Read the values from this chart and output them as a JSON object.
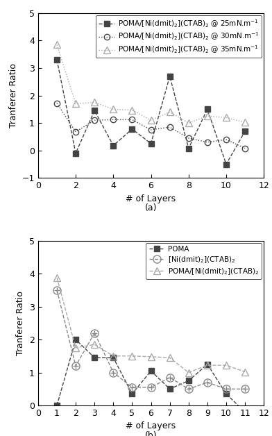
{
  "panel_a": {
    "series": [
      {
        "label": "POMA/[Ni(dmit)$_2$](CTAB)$_2$ @ 25mN.m$^{-1}$",
        "x": [
          1,
          2,
          3,
          4,
          5,
          6,
          7,
          8,
          9,
          10,
          11
        ],
        "y": [
          3.3,
          -0.1,
          1.45,
          0.18,
          0.78,
          0.25,
          2.7,
          0.08,
          1.5,
          -0.5,
          0.7
        ],
        "marker": "s",
        "linestyle": "--",
        "color": "#444444",
        "markersize": 6,
        "fillstyle": "full"
      },
      {
        "label": "POMA/[Ni(dmit)$_2$](CTAB)$_2$ @ 30mN.m$^{-1}$",
        "x": [
          1,
          2,
          3,
          4,
          5,
          6,
          7,
          8,
          9,
          10,
          11
        ],
        "y": [
          1.72,
          0.68,
          1.1,
          1.12,
          1.12,
          0.75,
          0.85,
          0.45,
          0.3,
          0.4,
          0.08
        ],
        "marker": "o",
        "linestyle": ":",
        "color": "#444444",
        "markersize": 6,
        "fillstyle": "none"
      },
      {
        "label": "POMA/[Ni(dmit)$_2$](CTAB)$_2$ @ 35mN.m$^{-1}$",
        "x": [
          1,
          2,
          3,
          4,
          5,
          6,
          7,
          8,
          9,
          10,
          11
        ],
        "y": [
          3.85,
          1.7,
          1.75,
          1.5,
          1.47,
          1.1,
          1.4,
          1.0,
          1.25,
          1.2,
          1.02
        ],
        "marker": "^",
        "linestyle": ":",
        "color": "#aaaaaa",
        "markersize": 7,
        "fillstyle": "none"
      }
    ],
    "xlabel": "# of Layers",
    "ylabel": "Tranferer Ratio",
    "xlim": [
      0,
      12
    ],
    "ylim": [
      -1,
      5
    ],
    "xticks": [
      0,
      2,
      4,
      6,
      8,
      10,
      12
    ],
    "yticks": [
      -1,
      0,
      1,
      2,
      3,
      4,
      5
    ],
    "panel_label": "(a)"
  },
  "panel_b": {
    "series": [
      {
        "label": "POMA",
        "x": [
          1,
          2,
          3,
          4,
          5,
          6,
          7,
          8,
          9,
          10,
          11
        ],
        "y": [
          0.0,
          2.0,
          1.45,
          1.45,
          0.35,
          1.05,
          0.5,
          0.75,
          1.25,
          0.35,
          -0.2
        ],
        "marker": "s",
        "linestyle": "--",
        "color": "#444444",
        "markersize": 6,
        "fillstyle": "full",
        "extra_marker": null
      },
      {
        "label": "[Ni(dmit)$_2$](CTAB)$_2$",
        "x": [
          1,
          2,
          3,
          4,
          5,
          6,
          7,
          8,
          9,
          10,
          11
        ],
        "y": [
          3.5,
          1.2,
          2.2,
          1.0,
          0.55,
          0.55,
          0.85,
          0.5,
          0.7,
          0.5,
          0.5
        ],
        "marker": "o",
        "linestyle": "--",
        "color": "#888888",
        "markersize": 8,
        "fillstyle": "none",
        "extra_marker": "+"
      },
      {
        "label": "POMA/[Ni(dmit)$_2$](CTAB)$_2$",
        "x": [
          1,
          2,
          3,
          4,
          5,
          6,
          7,
          8,
          9,
          10,
          11
        ],
        "y": [
          3.88,
          1.75,
          1.85,
          1.5,
          1.5,
          1.48,
          1.45,
          1.0,
          1.22,
          1.22,
          1.02
        ],
        "marker": "^",
        "linestyle": "--",
        "color": "#aaaaaa",
        "markersize": 7,
        "fillstyle": "none",
        "extra_marker": null
      }
    ],
    "xlabel": "# of Layers",
    "ylabel": "Tranferer Ratio",
    "xlim": [
      0,
      12
    ],
    "ylim": [
      0,
      5
    ],
    "xticks": [
      0,
      1,
      2,
      3,
      4,
      5,
      6,
      7,
      8,
      9,
      10,
      11,
      12
    ],
    "yticks": [
      0,
      1,
      2,
      3,
      4,
      5
    ],
    "panel_label": "(b)"
  },
  "figure_bg": "white",
  "font_size": 9,
  "legend_fontsize": 7.5,
  "tick_fontsize": 9,
  "linewidth": 1.0
}
